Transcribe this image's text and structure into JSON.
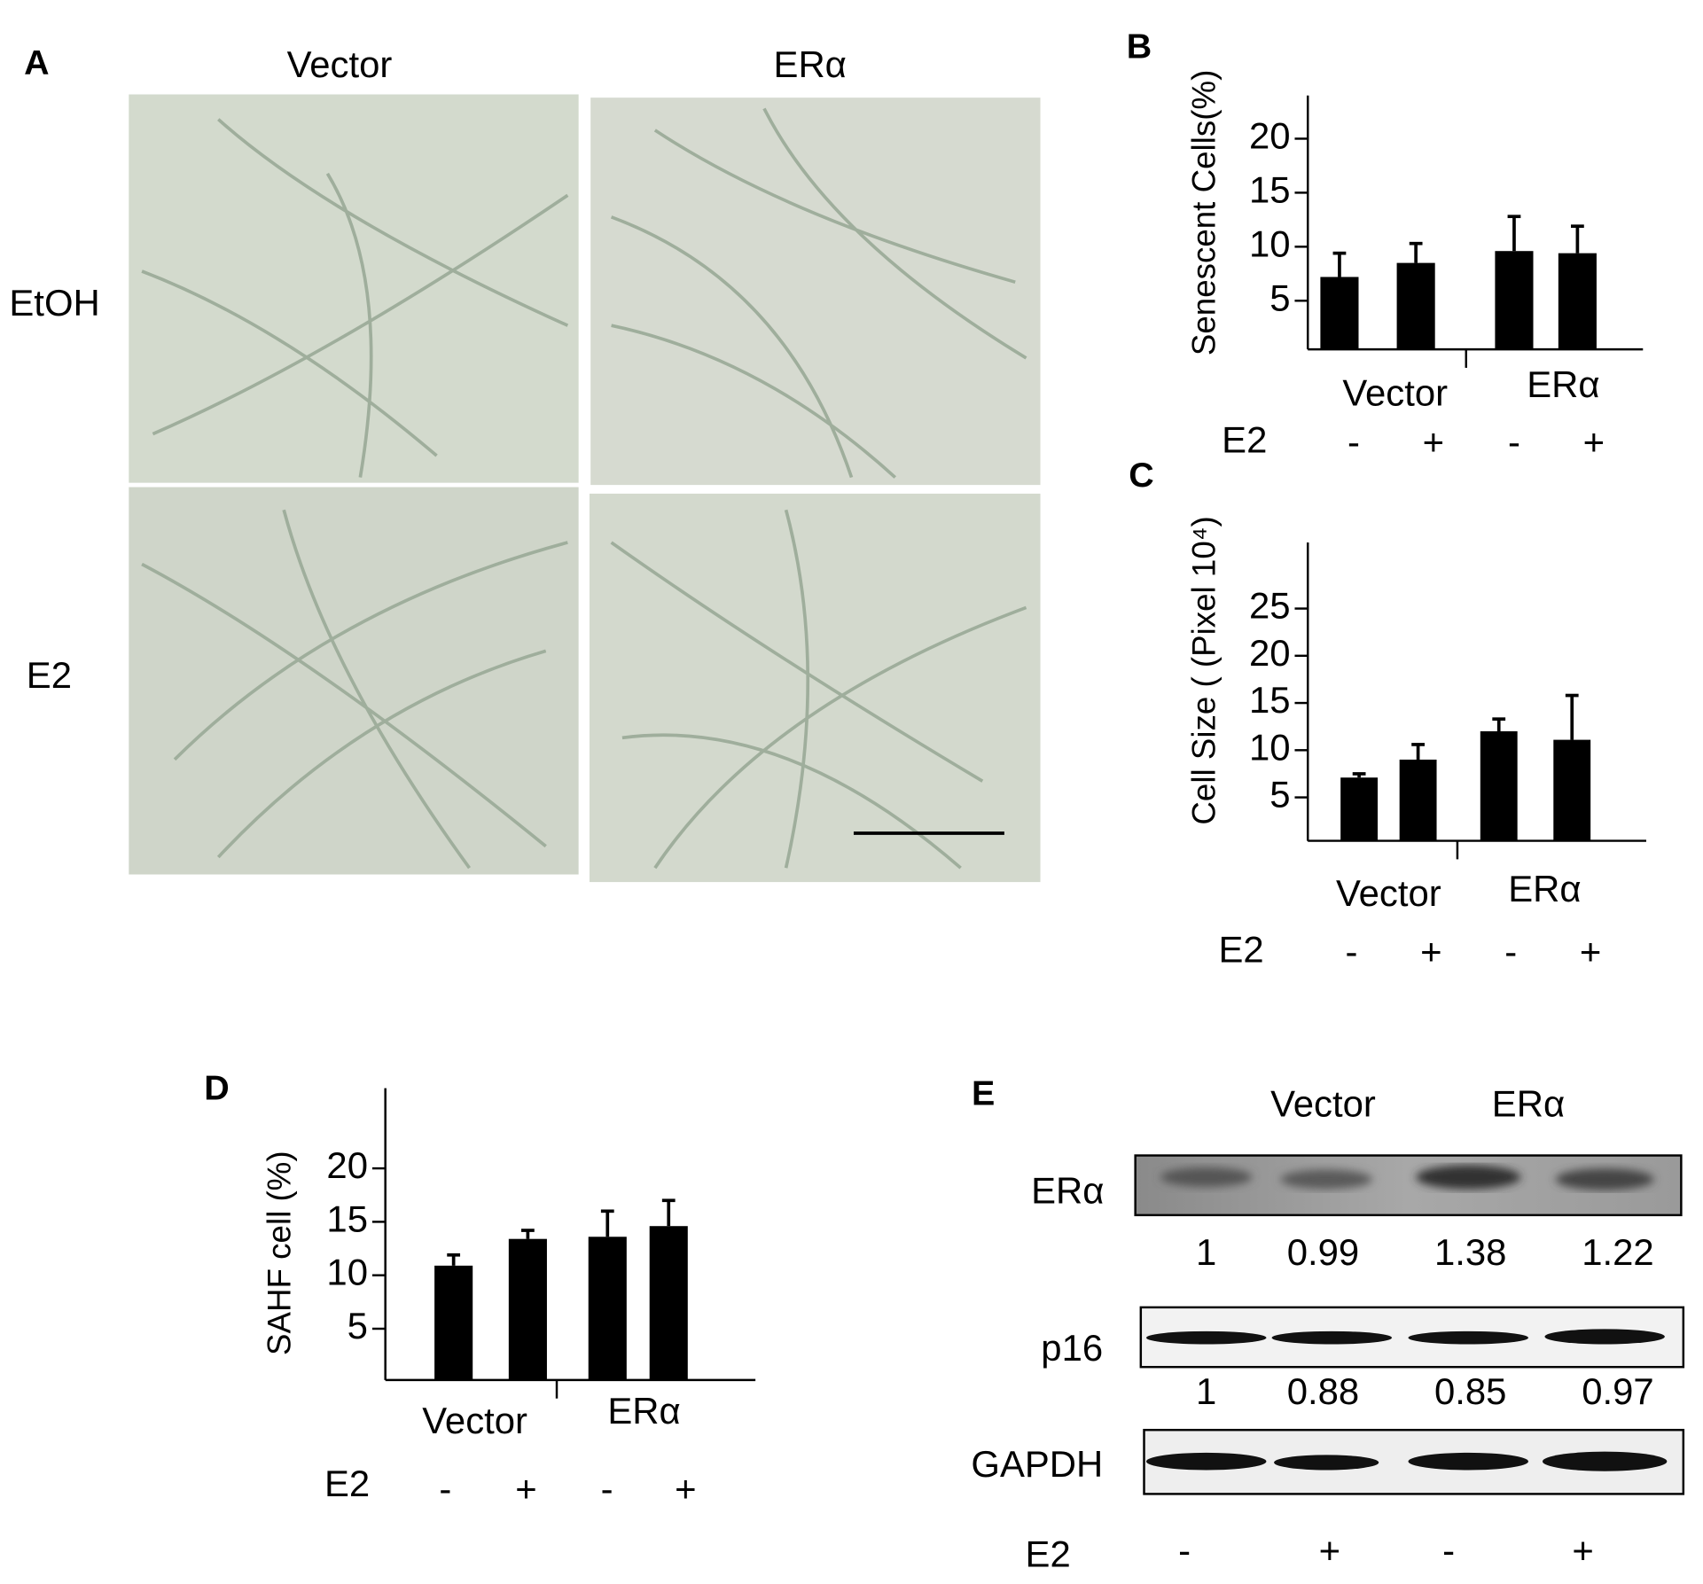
{
  "panel_a": {
    "label": "A",
    "columns": [
      "Vector",
      "ERα"
    ],
    "rows": [
      "EtOH",
      "E2"
    ]
  },
  "chart_data": [
    {
      "type": "bar",
      "panel_label": "B",
      "y_label": "Senescent Cells(%)",
      "groups": [
        "Vector",
        "ERα"
      ],
      "factor_label": "E2",
      "categories": [
        "-",
        "+",
        "-",
        "+"
      ],
      "values": [
        7.2,
        8.5,
        9.6,
        9.4
      ],
      "errors": [
        2.2,
        1.8,
        3.2,
        2.5
      ],
      "ylim": [
        0.5,
        24
      ],
      "yticks": [
        5,
        10,
        15,
        20
      ],
      "color": "#000000"
    },
    {
      "type": "bar",
      "panel_label": "C",
      "y_label": "Cell Size ( (Pixel 10⁴)",
      "groups": [
        "Vector",
        "ERα"
      ],
      "factor_label": "E2",
      "categories": [
        "-",
        "+",
        "-",
        "+"
      ],
      "values": [
        7.1,
        9.0,
        12.0,
        11.1
      ],
      "errors": [
        0.4,
        1.6,
        1.3,
        4.7
      ],
      "ylim": [
        0.4,
        32
      ],
      "yticks": [
        5,
        10,
        15,
        20,
        25
      ],
      "color": "#000000"
    },
    {
      "type": "bar",
      "panel_label": "D",
      "y_label": "SAHF cell (%)",
      "groups": [
        "Vector",
        "ERα"
      ],
      "factor_label": "E2",
      "categories": [
        "-",
        "+",
        "-",
        "+"
      ],
      "values": [
        10.9,
        13.4,
        13.6,
        14.6
      ],
      "errors": [
        1.0,
        0.8,
        2.4,
        2.4
      ],
      "ylim": [
        0.2,
        27.5
      ],
      "yticks": [
        5,
        10,
        15,
        20
      ],
      "color": "#000000"
    }
  ],
  "panel_e": {
    "label": "E",
    "columns": [
      "Vector",
      "ERα"
    ],
    "blots": [
      {
        "label": "ERα",
        "values": [
          1,
          0.99,
          1.38,
          1.22
        ]
      },
      {
        "label": "p16",
        "values": [
          1,
          0.88,
          0.85,
          0.97
        ]
      },
      {
        "label": "GAPDH"
      }
    ],
    "factor_label": "E2",
    "conditions": [
      "-",
      "+",
      "-",
      "+"
    ]
  }
}
